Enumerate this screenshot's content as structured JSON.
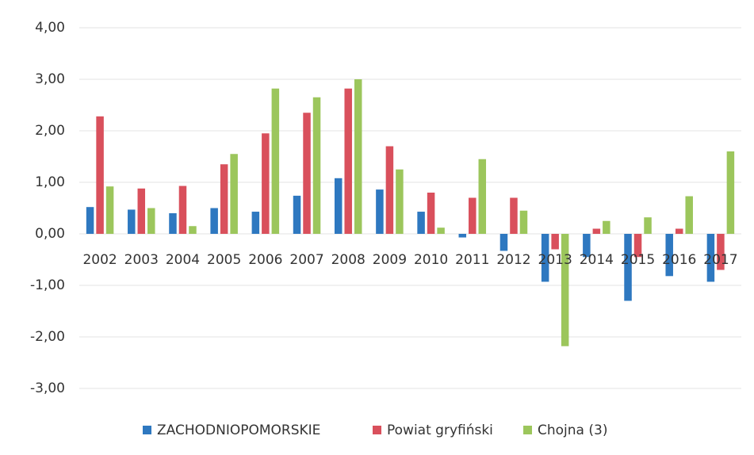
{
  "chart_data": {
    "type": "bar",
    "categories": [
      "2002",
      "2003",
      "2004",
      "2005",
      "2006",
      "2007",
      "2008",
      "2009",
      "2010",
      "2011",
      "2012",
      "2013",
      "2014",
      "2015",
      "2016",
      "2017"
    ],
    "series": [
      {
        "name": "ZACHODNIOPOMORSKIE",
        "color": "#2e78c0",
        "values": [
          0.52,
          0.47,
          0.4,
          0.5,
          0.43,
          0.74,
          1.08,
          0.86,
          0.43,
          -0.07,
          -0.33,
          -0.93,
          -0.45,
          -1.3,
          -0.82,
          -0.93
        ]
      },
      {
        "name": "Powiat gryfiński",
        "color": "#d9505c",
        "values": [
          2.28,
          0.88,
          0.93,
          1.35,
          1.95,
          2.35,
          2.82,
          1.7,
          0.8,
          0.7,
          0.7,
          -0.3,
          0.1,
          -0.45,
          0.1,
          -0.7
        ]
      },
      {
        "name": "Chojna (3)",
        "color": "#9cc65c",
        "values": [
          0.92,
          0.5,
          0.15,
          1.55,
          2.82,
          2.65,
          3.0,
          1.25,
          0.12,
          1.45,
          0.45,
          -2.18,
          0.25,
          0.32,
          0.73,
          1.6
        ]
      }
    ],
    "ylim": [
      -3,
      4
    ],
    "yticks": [
      {
        "value": -3,
        "label": "-3,00"
      },
      {
        "value": -2,
        "label": "-2,00"
      },
      {
        "value": -1,
        "label": "-1,00"
      },
      {
        "value": 0,
        "label": "0,00"
      },
      {
        "value": 1,
        "label": "1,00"
      },
      {
        "value": 2,
        "label": "2,00"
      },
      {
        "value": 3,
        "label": "3,00"
      },
      {
        "value": 4,
        "label": "4,00"
      }
    ],
    "grid": true,
    "legend": "bottom"
  }
}
